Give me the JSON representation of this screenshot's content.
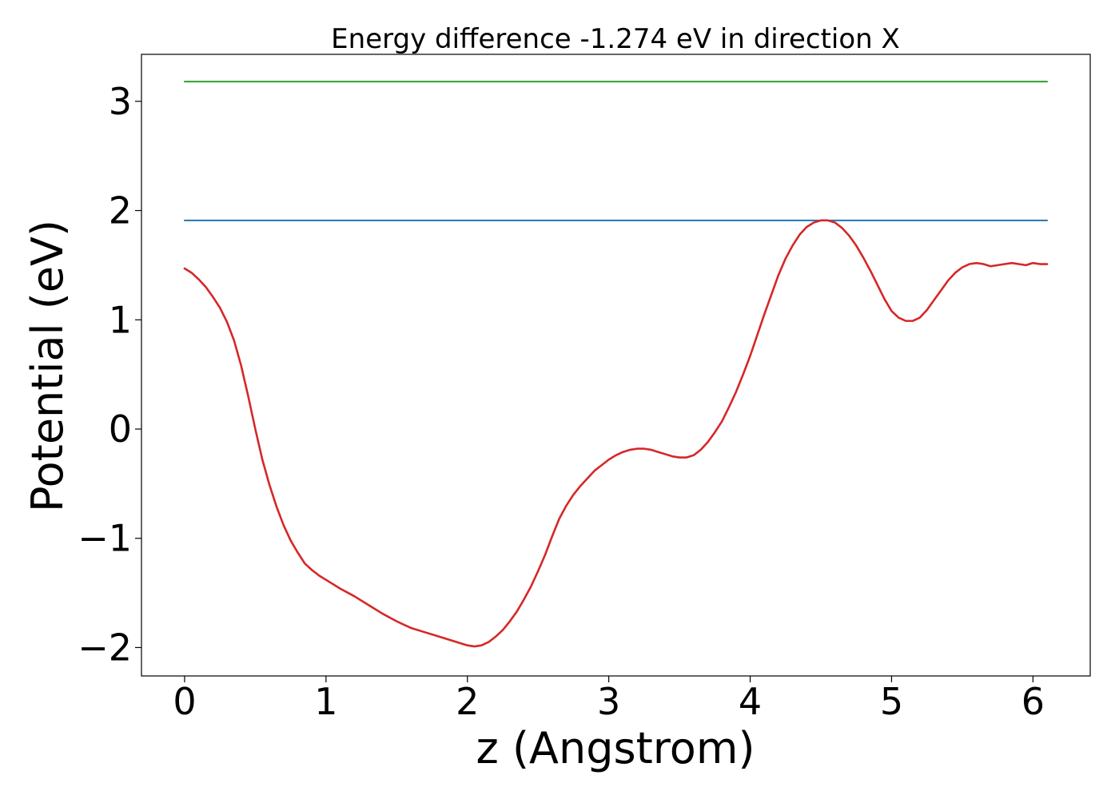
{
  "chart_data": {
    "type": "line",
    "title": "Energy difference -1.274 eV in direction X",
    "xlabel": "z (Angstrom)",
    "ylabel": "Potential (eV)",
    "xlim": [
      -0.305,
      6.405
    ],
    "ylim": [
      -2.26,
      3.43
    ],
    "x_ticks": [
      0,
      1,
      2,
      3,
      4,
      5,
      6
    ],
    "y_ticks": [
      -2,
      -1,
      0,
      1,
      2,
      3
    ],
    "x_tick_labels": [
      "0",
      "1",
      "2",
      "3",
      "4",
      "5",
      "6"
    ],
    "y_tick_labels": [
      "−2",
      "−1",
      "0",
      "1",
      "2",
      "3"
    ],
    "grid": false,
    "series": [
      {
        "color": "#d62728",
        "x": [
          0,
          0.05,
          0.1,
          0.15,
          0.2,
          0.25,
          0.3,
          0.35,
          0.4,
          0.45,
          0.5,
          0.55,
          0.6,
          0.65,
          0.7,
          0.75,
          0.8,
          0.85,
          0.9,
          0.95,
          1.0,
          1.1,
          1.2,
          1.3,
          1.4,
          1.5,
          1.6,
          1.7,
          1.8,
          1.9,
          2.0,
          2.05,
          2.1,
          2.15,
          2.2,
          2.25,
          2.3,
          2.35,
          2.4,
          2.45,
          2.5,
          2.55,
          2.6,
          2.65,
          2.7,
          2.75,
          2.8,
          2.85,
          2.9,
          2.95,
          3.0,
          3.05,
          3.1,
          3.15,
          3.2,
          3.25,
          3.3,
          3.35,
          3.4,
          3.45,
          3.5,
          3.55,
          3.6,
          3.65,
          3.7,
          3.75,
          3.8,
          3.85,
          3.9,
          3.95,
          4.0,
          4.05,
          4.1,
          4.15,
          4.2,
          4.25,
          4.3,
          4.35,
          4.4,
          4.45,
          4.5,
          4.55,
          4.6,
          4.65,
          4.7,
          4.75,
          4.8,
          4.85,
          4.9,
          4.95,
          5.0,
          5.05,
          5.1,
          5.15,
          5.2,
          5.25,
          5.3,
          5.35,
          5.4,
          5.45,
          5.5,
          5.55,
          5.6,
          5.65,
          5.7,
          5.75,
          5.8,
          5.85,
          5.9,
          5.95,
          6.0,
          6.05,
          6.1
        ],
        "y": [
          1.47,
          1.43,
          1.37,
          1.3,
          1.21,
          1.11,
          0.98,
          0.81,
          0.58,
          0.3,
          0.0,
          -0.28,
          -0.51,
          -0.71,
          -0.88,
          -1.02,
          -1.13,
          -1.23,
          -1.29,
          -1.34,
          -1.38,
          -1.46,
          -1.53,
          -1.61,
          -1.69,
          -1.76,
          -1.82,
          -1.86,
          -1.9,
          -1.94,
          -1.98,
          -1.99,
          -1.98,
          -1.95,
          -1.9,
          -1.84,
          -1.76,
          -1.67,
          -1.56,
          -1.44,
          -1.3,
          -1.15,
          -0.98,
          -0.82,
          -0.7,
          -0.6,
          -0.52,
          -0.45,
          -0.38,
          -0.33,
          -0.28,
          -0.24,
          -0.21,
          -0.19,
          -0.18,
          -0.18,
          -0.19,
          -0.21,
          -0.23,
          -0.25,
          -0.26,
          -0.26,
          -0.24,
          -0.19,
          -0.12,
          -0.03,
          0.07,
          0.2,
          0.34,
          0.5,
          0.67,
          0.86,
          1.05,
          1.23,
          1.41,
          1.56,
          1.68,
          1.78,
          1.85,
          1.89,
          1.91,
          1.91,
          1.89,
          1.84,
          1.77,
          1.68,
          1.57,
          1.45,
          1.32,
          1.19,
          1.08,
          1.02,
          0.99,
          0.99,
          1.02,
          1.09,
          1.18,
          1.27,
          1.36,
          1.43,
          1.48,
          1.51,
          1.52,
          1.51,
          1.49,
          1.5,
          1.51,
          1.52,
          1.51,
          1.5,
          1.52,
          1.51,
          1.51
        ]
      },
      {
        "color": "#1f77b4",
        "x": [
          0,
          6.1
        ],
        "y": [
          1.91,
          1.91
        ]
      },
      {
        "color": "#2ca02c",
        "x": [
          0,
          6.1
        ],
        "y": [
          3.18,
          3.18
        ]
      }
    ]
  }
}
